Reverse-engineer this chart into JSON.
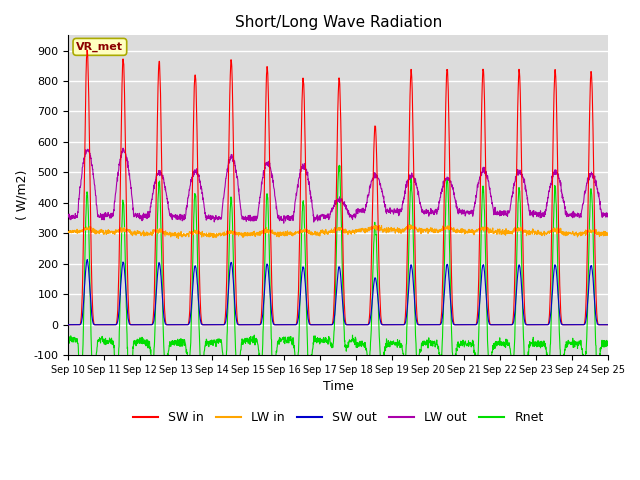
{
  "title": "Short/Long Wave Radiation",
  "ylabel": "( W/m2)",
  "xlabel": "Time",
  "ylim": [
    -100,
    950
  ],
  "yticks": [
    -100,
    0,
    100,
    200,
    300,
    400,
    500,
    600,
    700,
    800,
    900
  ],
  "x_labels": [
    "Sep 10",
    "Sep 11",
    "Sep 12",
    "Sep 13",
    "Sep 14",
    "Sep 15",
    "Sep 16",
    "Sep 17",
    "Sep 18",
    "Sep 19",
    "Sep 20",
    "Sep 21",
    "Sep 22",
    "Sep 23",
    "Sep 24",
    "Sep 25"
  ],
  "legend_labels": [
    "SW in",
    "LW in",
    "SW out",
    "LW out",
    "Rnet"
  ],
  "colors": {
    "SW in": "#ff0000",
    "LW in": "#ffa500",
    "SW out": "#0000cc",
    "LW out": "#aa00aa",
    "Rnet": "#00dd00"
  },
  "station_label": "VR_met",
  "background_color": "#dcdcdc",
  "n_days": 15,
  "points_per_day": 144
}
